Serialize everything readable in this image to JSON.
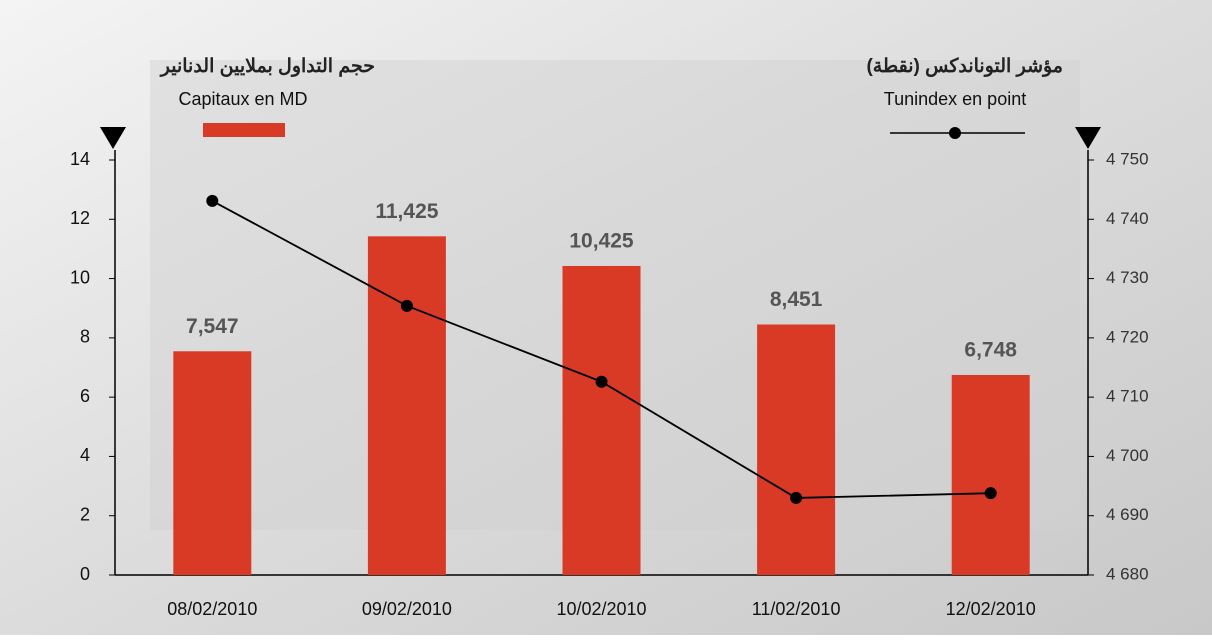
{
  "chart_data": {
    "type": "bar",
    "ylabel": "حجم التداول بملايين الدنانير",
    "y2label": "مؤشر التوناندكس (نقطة)",
    "categories": [
      "08/02/2010",
      "09/02/2010",
      "10/02/2010",
      "11/02/2010",
      "12/02/2010"
    ],
    "series": [
      {
        "name": "Capitaux en MD",
        "color": "#d93a26",
        "type": "bar",
        "values": [
          7.547,
          11.425,
          10.425,
          8.451,
          6.748
        ],
        "value_labels": [
          "7,547",
          "11,425",
          "10,425",
          "8,451",
          "6,748"
        ]
      },
      {
        "name": "Tunindex en point",
        "color": "#000000",
        "type": "line",
        "axis": "y2",
        "values": [
          4743.1,
          4725.4,
          4712.6,
          4693.0,
          4693.8
        ]
      }
    ],
    "ylim": [
      0,
      14
    ],
    "yticks": [
      0,
      2,
      4,
      6,
      8,
      10,
      12,
      14
    ],
    "y2lim": [
      4680,
      4750
    ],
    "y2ticks": [
      {
        "value": 4680,
        "label": "4 680"
      },
      {
        "value": 4690,
        "label": "4 690"
      },
      {
        "value": 4700,
        "label": "4 700"
      },
      {
        "value": 4710,
        "label": "4 710"
      },
      {
        "value": 4720,
        "label": "4 720"
      },
      {
        "value": 4730,
        "label": "4 730"
      },
      {
        "value": 4740,
        "label": "4 740"
      },
      {
        "value": 4750,
        "label": "4 750"
      }
    ]
  }
}
